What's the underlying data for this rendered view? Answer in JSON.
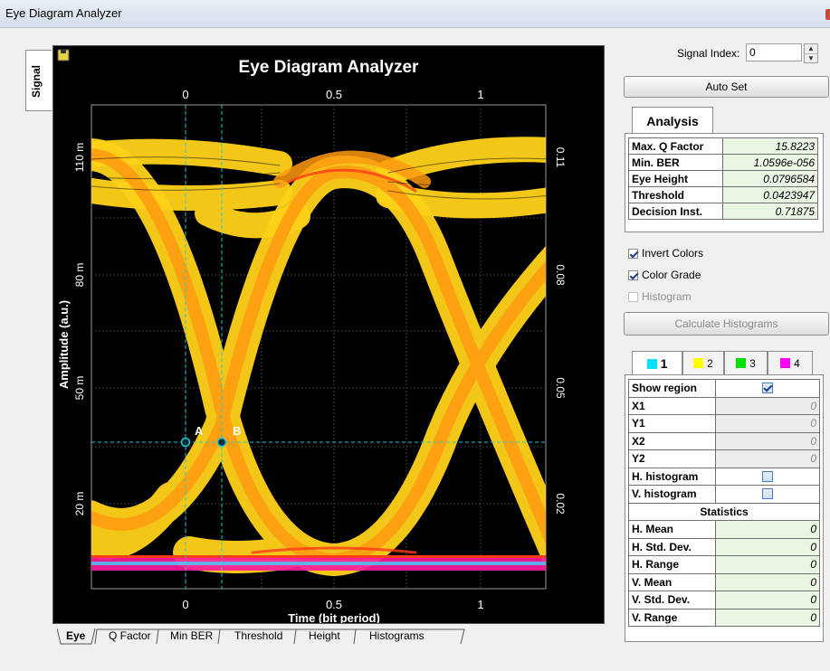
{
  "window": {
    "title": "Eye Diagram Analyzer"
  },
  "side_tab": {
    "label": "Signal"
  },
  "plot": {
    "title": "Eye Diagram Analyzer",
    "xlabel": "Time (bit period)",
    "ylabel": "Amplitude (a.u.)",
    "left_ticks": [
      "110 m",
      "80 m",
      "50 m",
      "20 m"
    ],
    "right_ticks": [
      "0.11",
      "0.08",
      "0.05",
      "0.02"
    ],
    "x_ticks": [
      "0",
      "0.5",
      "1"
    ],
    "markers": {
      "a": "A",
      "b": "B"
    },
    "colors": {
      "trace_outer": "#ffd21a",
      "trace_core": "#ff9a10",
      "trace_hot": "#ff3b1a",
      "cursor": "#20c8d8",
      "baseline": "#ff1aa0"
    }
  },
  "bottom_tabs": [
    "Eye",
    "Q Factor",
    "Min BER",
    "Threshold",
    "Height",
    "Histograms"
  ],
  "signal_index": {
    "label": "Signal Index:",
    "value": "0"
  },
  "auto_set_label": "Auto Set",
  "analysis": {
    "tab_label": "Analysis",
    "rows": [
      {
        "key": "Max. Q Factor",
        "value": "15.8223"
      },
      {
        "key": "Min. BER",
        "value": "1.0596e-056"
      },
      {
        "key": "Eye Height",
        "value": "0.0796584"
      },
      {
        "key": "Threshold",
        "value": "0.0423947"
      },
      {
        "key": "Decision Inst.",
        "value": "0.71875"
      }
    ]
  },
  "options": {
    "invert_colors": {
      "label": "Invert Colors",
      "checked": true
    },
    "color_grade": {
      "label": "Color Grade",
      "checked": true
    },
    "histogram": {
      "label": "Histogram",
      "checked": false
    }
  },
  "calc_label": "Calculate Histograms",
  "region_tabs": [
    {
      "label": "1",
      "color": "#00e5ff"
    },
    {
      "label": "2",
      "color": "#ffff00"
    },
    {
      "label": "3",
      "color": "#00e000"
    },
    {
      "label": "4",
      "color": "#ff00ff"
    }
  ],
  "region": {
    "show_region": "Show region",
    "x1": {
      "key": "X1",
      "value": "0"
    },
    "y1": {
      "key": "Y1",
      "value": "0"
    },
    "x2": {
      "key": "X2",
      "value": "0"
    },
    "y2": {
      "key": "Y2",
      "value": "0"
    },
    "h_hist": "H. histogram",
    "v_hist": "V. histogram",
    "statistics": "Statistics",
    "stats": [
      {
        "key": "H. Mean",
        "value": "0"
      },
      {
        "key": "H. Std. Dev.",
        "value": "0"
      },
      {
        "key": "H. Range",
        "value": "0"
      },
      {
        "key": "V. Mean",
        "value": "0"
      },
      {
        "key": "V. Std. Dev.",
        "value": "0"
      },
      {
        "key": "V. Range",
        "value": "0"
      }
    ]
  }
}
